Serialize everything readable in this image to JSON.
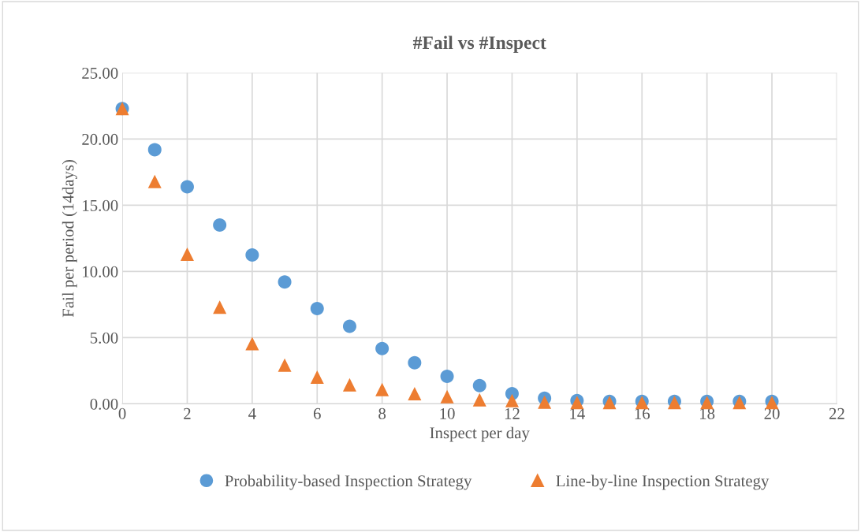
{
  "chart_data": {
    "type": "scatter",
    "title": "#Fail vs #Inspect",
    "xlabel": "Inspect per day",
    "ylabel": "Fail per period (14days)",
    "x": [
      0,
      1,
      2,
      3,
      4,
      5,
      6,
      7,
      8,
      9,
      10,
      11,
      12,
      13,
      14,
      15,
      16,
      17,
      18,
      19,
      20
    ],
    "series": [
      {
        "name": "Probability-based Inspection Strategy",
        "color": "#5b9bd5",
        "marker": "circle",
        "values": [
          22.3,
          19.2,
          16.4,
          13.5,
          11.25,
          9.2,
          7.2,
          5.85,
          4.17,
          3.1,
          2.08,
          1.37,
          0.77,
          0.42,
          0.24,
          0.18,
          0.18,
          0.18,
          0.18,
          0.18,
          0.18
        ]
      },
      {
        "name": "Line-by-line Inspection Strategy",
        "color": "#ed7d31",
        "marker": "triangle",
        "values": [
          22.3,
          16.8,
          11.3,
          7.3,
          4.55,
          2.92,
          2.02,
          1.43,
          1.07,
          0.77,
          0.54,
          0.3,
          0.24,
          0.12,
          0.1,
          0.1,
          0.1,
          0.1,
          0.1,
          0.1,
          0.1
        ]
      }
    ],
    "xlim": [
      0,
      22
    ],
    "xticks": [
      0,
      2,
      4,
      6,
      8,
      10,
      12,
      14,
      16,
      18,
      20,
      22
    ],
    "ylim": [
      0,
      25
    ],
    "yticks": [
      {
        "value": 0,
        "label": "0.00"
      },
      {
        "value": 5,
        "label": "5.00"
      },
      {
        "value": 10,
        "label": "10.00"
      },
      {
        "value": 15,
        "label": "15.00"
      },
      {
        "value": 20,
        "label": "20.00"
      },
      {
        "value": 25,
        "label": "25.00"
      }
    ],
    "grid": true,
    "legend": "bottom"
  }
}
